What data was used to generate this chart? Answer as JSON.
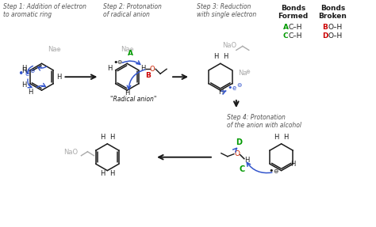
{
  "bg_color": "#ffffff",
  "text_color": "#1a1a1a",
  "step_color": "#555555",
  "green": "#009900",
  "red": "#cc0000",
  "blue": "#0033cc",
  "gray": "#aaaaaa",
  "bond_blue": "#3355cc",
  "steps": [
    "Step 1: Addition of electron\nto aromatic ring",
    "Step 2: Protonation\nof radical anion",
    "Step 3: Reduction\nwith single electron",
    "Step 4: Protonation\nof the anion with alcohol"
  ],
  "radical_anion": "\"Radical anion\"",
  "bonds_formed_label": "Bonds\nFormed",
  "bonds_broken_label": "Bonds\nBroken",
  "legend_items": [
    {
      "letter": "A",
      "bond": "C–H",
      "col": "formed"
    },
    {
      "letter": "C",
      "bond": "C–H",
      "col": "formed"
    },
    {
      "letter": "B",
      "bond": "O–H",
      "col": "broken"
    },
    {
      "letter": "D",
      "bond": "O–H",
      "col": "broken"
    }
  ]
}
